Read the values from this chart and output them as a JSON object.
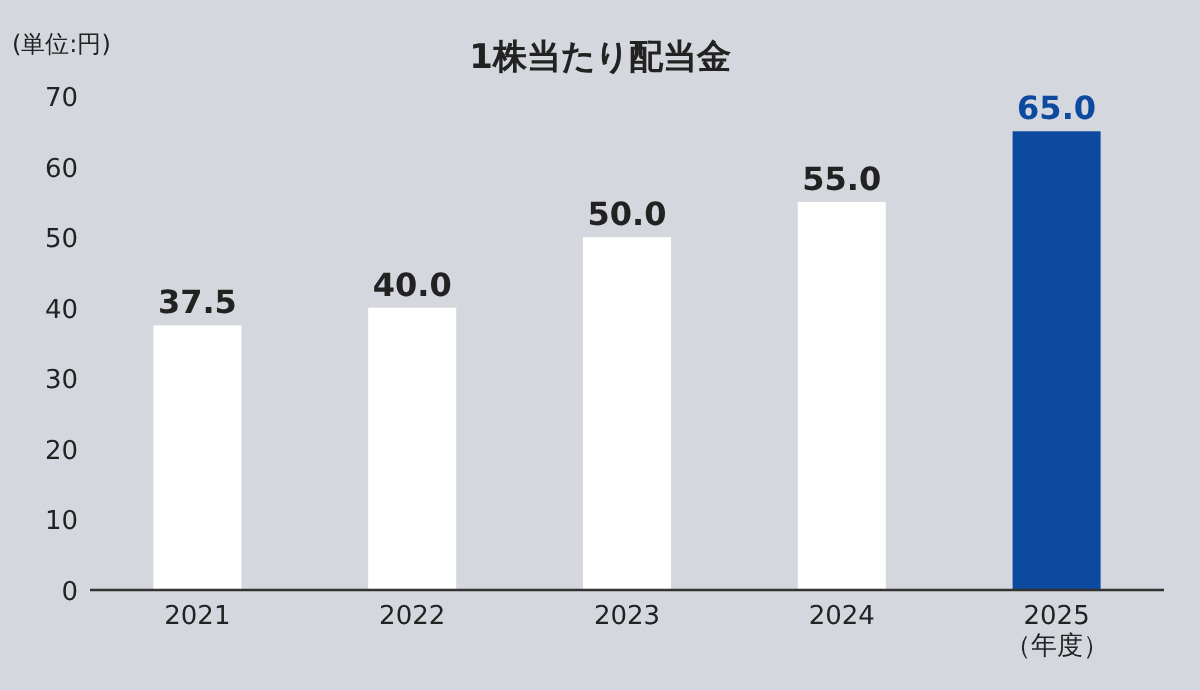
{
  "chart_data": {
    "type": "bar",
    "title": "1株当たり配当金",
    "ylabel": "(単位:円)",
    "categories": [
      "2021",
      "2022",
      "2023",
      "2024",
      "2025\n（年度）"
    ],
    "values": [
      37.5,
      40,
      50,
      55,
      65
    ],
    "colors": [
      "#ffffff",
      "#ffffff",
      "#ffffff",
      "#ffffff",
      "#0b4a9e"
    ],
    "value_labels": [
      "37.5",
      "40.0",
      "50.0",
      "55.0",
      "65.0"
    ],
    "ylim": [
      0,
      70
    ],
    "yticks": [
      0,
      10,
      20,
      30,
      40,
      50,
      60,
      70
    ],
    "grid": false
  }
}
